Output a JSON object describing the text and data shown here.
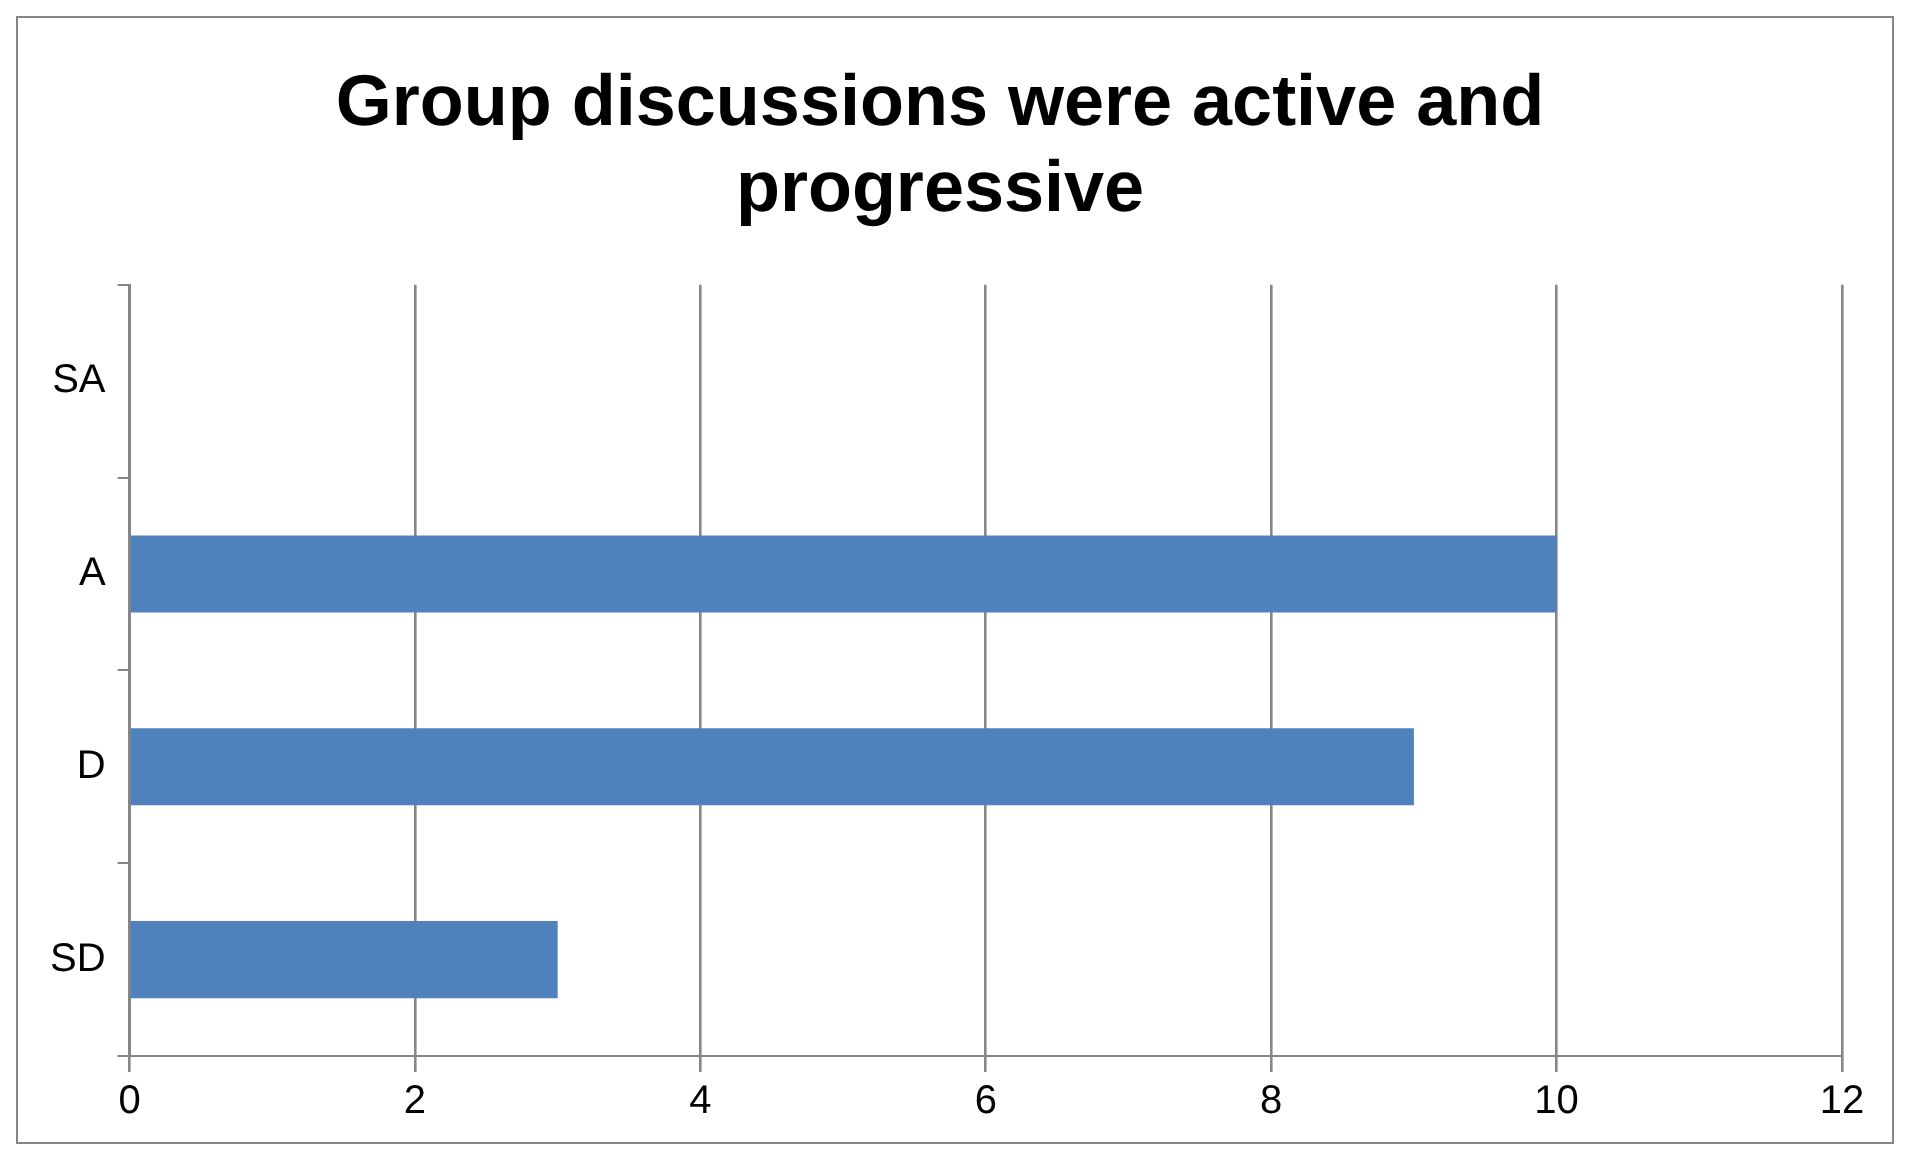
{
  "chart_data": {
    "type": "bar",
    "orientation": "horizontal",
    "title": "Group discussions were active and progressive",
    "categories": [
      "SA",
      "A",
      "D",
      "SD"
    ],
    "values": [
      0,
      10,
      9,
      3
    ],
    "color": "#4f81bd",
    "xlim": [
      0,
      12
    ],
    "xticks": [
      0,
      2,
      4,
      6,
      8,
      10,
      12
    ],
    "grid": "x",
    "legend": false
  }
}
